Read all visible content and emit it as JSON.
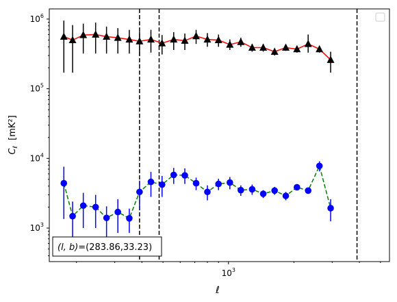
{
  "chart_data": {
    "type": "scatter",
    "xlabel": "ℓ",
    "ylabel": "C",
    "ylabel_subscript": "ℓ",
    "ylabel_unit": "[mK²]",
    "x_scale": "log",
    "y_scale": "log",
    "xlim": [
      150,
      5500
    ],
    "ylim": [
      330,
      1400000
    ],
    "x_ticks": [
      {
        "value": 1000,
        "base": "10",
        "exp": "3"
      }
    ],
    "y_ticks": [
      {
        "value": 1000,
        "base": "10",
        "exp": "3"
      },
      {
        "value": 10000,
        "base": "10",
        "exp": "4"
      },
      {
        "value": 100000,
        "base": "10",
        "exp": "5"
      },
      {
        "value": 1000000,
        "base": "10",
        "exp": "6"
      }
    ],
    "grid": false,
    "legend": "top-right (empty box)",
    "annotation": {
      "prefix": "(l, b)",
      "value": "=(283.86,33.23)",
      "placement": "bottom-left"
    },
    "vlines": [
      390,
      480,
      3900
    ],
    "series": [
      {
        "marker": "triangle",
        "marker_color": "#000000",
        "line_color": "#ff0000",
        "line_style": "solid",
        "points": [
          {
            "x": 175,
            "y": 560000,
            "lo": 170000,
            "hi": 950000
          },
          {
            "x": 192,
            "y": 500000,
            "lo": 170000,
            "hi": 820000
          },
          {
            "x": 215,
            "y": 590000,
            "lo": 320000,
            "hi": 860000
          },
          {
            "x": 245,
            "y": 600000,
            "lo": 320000,
            "hi": 890000
          },
          {
            "x": 275,
            "y": 560000,
            "lo": 320000,
            "hi": 780000
          },
          {
            "x": 310,
            "y": 540000,
            "lo": 320000,
            "hi": 740000
          },
          {
            "x": 350,
            "y": 510000,
            "lo": 320000,
            "hi": 700000
          },
          {
            "x": 390,
            "y": 480000,
            "lo": 300000,
            "hi": 660000
          },
          {
            "x": 440,
            "y": 510000,
            "lo": 330000,
            "hi": 700000
          },
          {
            "x": 495,
            "y": 450000,
            "lo": 310000,
            "hi": 590000
          },
          {
            "x": 560,
            "y": 510000,
            "lo": 360000,
            "hi": 650000
          },
          {
            "x": 630,
            "y": 490000,
            "lo": 360000,
            "hi": 620000
          },
          {
            "x": 710,
            "y": 570000,
            "lo": 440000,
            "hi": 700000
          },
          {
            "x": 800,
            "y": 510000,
            "lo": 400000,
            "hi": 630000
          },
          {
            "x": 900,
            "y": 500000,
            "lo": 400000,
            "hi": 600000
          },
          {
            "x": 1015,
            "y": 430000,
            "lo": 360000,
            "hi": 510000
          },
          {
            "x": 1140,
            "y": 470000,
            "lo": 400000,
            "hi": 540000
          },
          {
            "x": 1285,
            "y": 390000,
            "lo": 340000,
            "hi": 440000
          },
          {
            "x": 1445,
            "y": 390000,
            "lo": 340000,
            "hi": 440000
          },
          {
            "x": 1630,
            "y": 340000,
            "lo": 300000,
            "hi": 380000
          },
          {
            "x": 1835,
            "y": 390000,
            "lo": 350000,
            "hi": 430000
          },
          {
            "x": 2065,
            "y": 370000,
            "lo": 330000,
            "hi": 410000
          },
          {
            "x": 2325,
            "y": 440000,
            "lo": 330000,
            "hi": 600000
          },
          {
            "x": 2620,
            "y": 370000,
            "lo": 330000,
            "hi": 410000
          },
          {
            "x": 2950,
            "y": 260000,
            "lo": 170000,
            "hi": 340000
          }
        ]
      },
      {
        "marker": "circle",
        "marker_color": "#0000ff",
        "line_color": "#008000",
        "line_style": "dashed",
        "points": [
          {
            "x": 175,
            "y": 4400,
            "lo": 1350,
            "hi": 7600
          },
          {
            "x": 192,
            "y": 1480,
            "lo": 560,
            "hi": 2400
          },
          {
            "x": 215,
            "y": 2100,
            "lo": 1000,
            "hi": 3200
          },
          {
            "x": 245,
            "y": 2000,
            "lo": 1000,
            "hi": 3000
          },
          {
            "x": 275,
            "y": 1400,
            "lo": 750,
            "hi": 2050
          },
          {
            "x": 310,
            "y": 1700,
            "lo": 850,
            "hi": 2600
          },
          {
            "x": 350,
            "y": 1380,
            "lo": 850,
            "hi": 1900
          },
          {
            "x": 390,
            "y": 3300,
            "lo": 1800,
            "hi": 4800
          },
          {
            "x": 440,
            "y": 4600,
            "lo": 2800,
            "hi": 6400
          },
          {
            "x": 495,
            "y": 4200,
            "lo": 2800,
            "hi": 5600
          },
          {
            "x": 560,
            "y": 5800,
            "lo": 4300,
            "hi": 7300
          },
          {
            "x": 630,
            "y": 5700,
            "lo": 4300,
            "hi": 7200
          },
          {
            "x": 710,
            "y": 4400,
            "lo": 3500,
            "hi": 5300
          },
          {
            "x": 800,
            "y": 3300,
            "lo": 2500,
            "hi": 4100
          },
          {
            "x": 900,
            "y": 4300,
            "lo": 3500,
            "hi": 5100
          },
          {
            "x": 1015,
            "y": 4500,
            "lo": 3600,
            "hi": 5400
          },
          {
            "x": 1140,
            "y": 3500,
            "lo": 2900,
            "hi": 4100
          },
          {
            "x": 1285,
            "y": 3600,
            "lo": 3000,
            "hi": 4200
          },
          {
            "x": 1445,
            "y": 3100,
            "lo": 2700,
            "hi": 3500
          },
          {
            "x": 1630,
            "y": 3450,
            "lo": 3000,
            "hi": 3900
          },
          {
            "x": 1835,
            "y": 2900,
            "lo": 2500,
            "hi": 3300
          },
          {
            "x": 2065,
            "y": 3850,
            "lo": 3500,
            "hi": 4200
          },
          {
            "x": 2325,
            "y": 3450,
            "lo": 3100,
            "hi": 3800
          },
          {
            "x": 2620,
            "y": 7800,
            "lo": 6500,
            "hi": 9100
          },
          {
            "x": 2950,
            "y": 1930,
            "lo": 1250,
            "hi": 2600
          }
        ]
      }
    ]
  }
}
